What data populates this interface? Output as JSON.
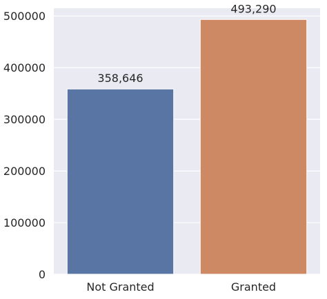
{
  "chart_data": {
    "type": "bar",
    "categories": [
      "Not Granted",
      "Granted"
    ],
    "values": [
      358646,
      493290
    ],
    "data_labels": [
      "358,646",
      "493,290"
    ],
    "ylim": [
      0,
      515000
    ],
    "yticks": [
      0,
      100000,
      200000,
      300000,
      400000,
      500000
    ],
    "ytick_labels": [
      "0",
      "100000",
      "200000",
      "300000",
      "400000",
      "500000"
    ],
    "colors": [
      "#5975a4",
      "#cc8963"
    ],
    "background": "#eaeaf2",
    "grid": true,
    "legend": "none",
    "title": "",
    "xlabel": "",
    "ylabel": ""
  }
}
